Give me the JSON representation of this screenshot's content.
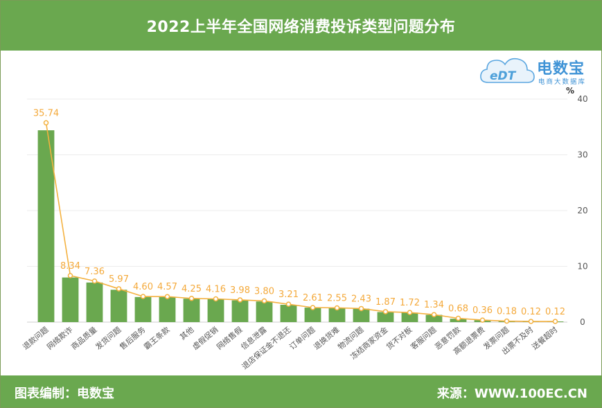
{
  "header": {
    "title": "2022上半年全国网络消费投诉类型问题分布"
  },
  "logo": {
    "mark_text": "eDT",
    "brand": "电数宝",
    "subtitle": "电商大数据库"
  },
  "footer": {
    "credit": "图表编制：电数宝",
    "source": "来源：WWW.100EC.CN"
  },
  "colors": {
    "bar": "#6aa84f",
    "line": "#f4b13f",
    "label": "#f4a93a",
    "header_bg": "#6aa84f"
  },
  "chart_data": {
    "type": "bar",
    "title": "2022上半年全国网络消费投诉类型问题分布",
    "categories": [
      "退款问题",
      "网络欺诈",
      "商品质量",
      "发货问题",
      "售后服务",
      "霸王条款",
      "其他",
      "虚假促销",
      "网络售假",
      "信息泄露",
      "退店保证金不退还",
      "订单问题",
      "退换货难",
      "物流问题",
      "冻结商家资金",
      "货不对板",
      "客服问题",
      "恶意罚款",
      "高额退票费",
      "发票问题",
      "出票不及时",
      "送餐超时"
    ],
    "series": [
      {
        "type": "bar",
        "values": [
          34.4,
          8.0,
          7.1,
          5.8,
          4.5,
          4.5,
          4.2,
          4.1,
          3.9,
          3.7,
          3.1,
          2.6,
          2.5,
          2.4,
          1.8,
          1.7,
          1.3,
          0.6,
          0.35,
          0.18,
          0.12,
          0.12
        ]
      },
      {
        "type": "line",
        "values": [
          35.74,
          8.34,
          7.36,
          5.97,
          4.6,
          4.57,
          4.25,
          4.16,
          3.98,
          3.8,
          3.21,
          2.61,
          2.55,
          2.43,
          1.87,
          1.72,
          1.34,
          0.68,
          0.36,
          0.18,
          0.12,
          0.12
        ],
        "labels": [
          "35.74",
          "8.34",
          "7.36",
          "5.97",
          "4.60",
          "4.57",
          "4.25",
          "4.16",
          "3.98",
          "3.80",
          "3.21",
          "2.61",
          "2.55",
          "2.43",
          "1.87",
          "1.72",
          "1.34",
          "0.68",
          "0.36",
          "0.18",
          "0.12",
          "0.12"
        ]
      }
    ],
    "ylabel": "%",
    "ylim": [
      0,
      40
    ],
    "yticks": [
      "0",
      "10",
      "20",
      "30",
      "40"
    ],
    "grid": true,
    "y_axis_position": "right"
  }
}
